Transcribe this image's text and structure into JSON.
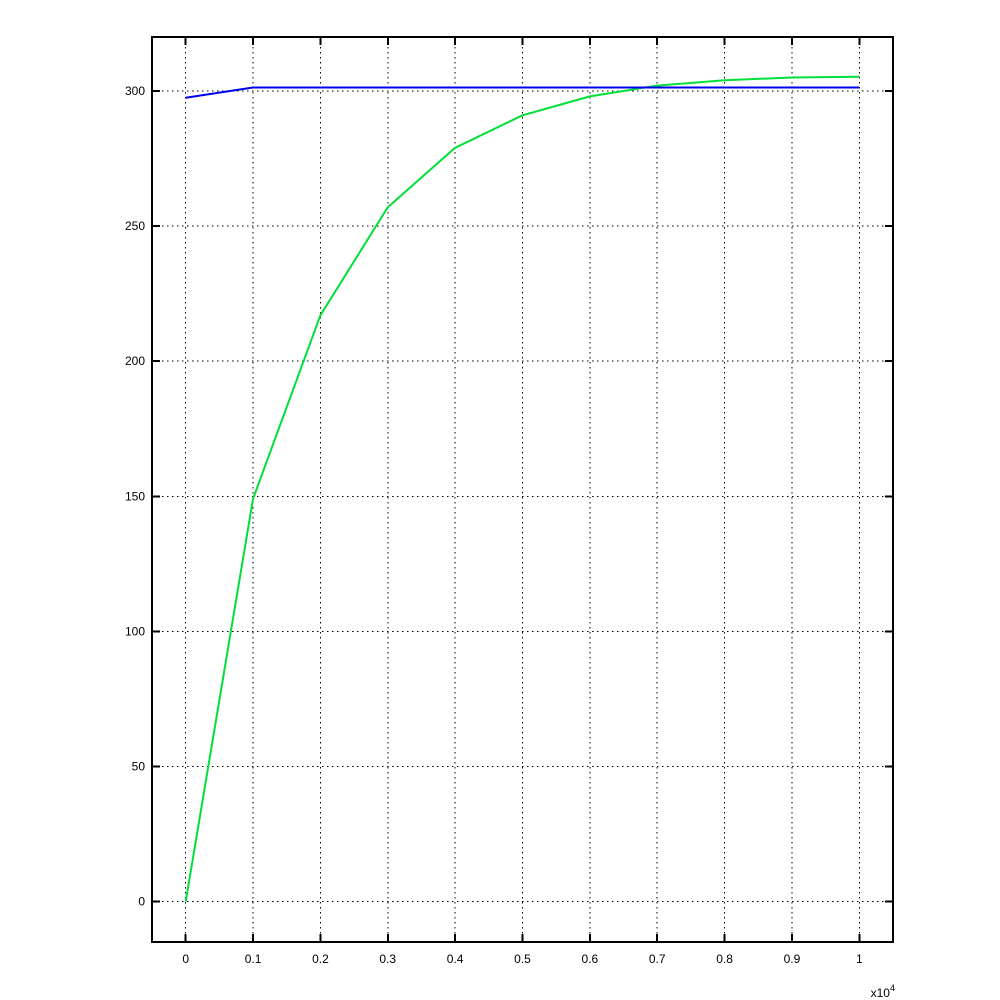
{
  "figure": {
    "background_color": "#ffffff",
    "frame_color": "#000000",
    "grid_color": "#000000"
  },
  "chart_data": {
    "type": "line",
    "title": "",
    "xlabel": "",
    "ylabel": "",
    "grid": true,
    "legend": "none",
    "x_axis_exponent_base": "x10",
    "x_axis_exponent_power": "4",
    "xlim": [
      -500,
      10500
    ],
    "ylim": [
      -15,
      320
    ],
    "xticks": [
      0,
      1000,
      2000,
      3000,
      4000,
      5000,
      6000,
      7000,
      8000,
      9000,
      10000
    ],
    "xtick_labels": [
      "0",
      "0.1",
      "0.2",
      "0.3",
      "0.4",
      "0.5",
      "0.6",
      "0.7",
      "0.8",
      "0.9",
      "1"
    ],
    "yticks": [
      0,
      50,
      100,
      150,
      200,
      250,
      300
    ],
    "ytick_labels": [
      "0",
      "50",
      "100",
      "150",
      "200",
      "250",
      "300"
    ],
    "series": [
      {
        "name": "green-curve",
        "color": "#00e03a",
        "width": 2,
        "x": [
          0,
          1000,
          2000,
          3000,
          4000,
          5000,
          6000,
          7000,
          8000,
          9000,
          10000
        ],
        "y": [
          0,
          149,
          217,
          257,
          279,
          291,
          298,
          302,
          304,
          305,
          305.3
        ]
      },
      {
        "name": "blue-curve",
        "color": "#0000ee",
        "width": 2,
        "x": [
          0,
          1000,
          2000,
          3000,
          4000,
          5000,
          6000,
          7000,
          8000,
          9000,
          10000
        ],
        "y": [
          297.5,
          301.3,
          301.3,
          301.3,
          301.3,
          301.3,
          301.3,
          301.3,
          301.3,
          301.3,
          301.3
        ]
      }
    ]
  }
}
